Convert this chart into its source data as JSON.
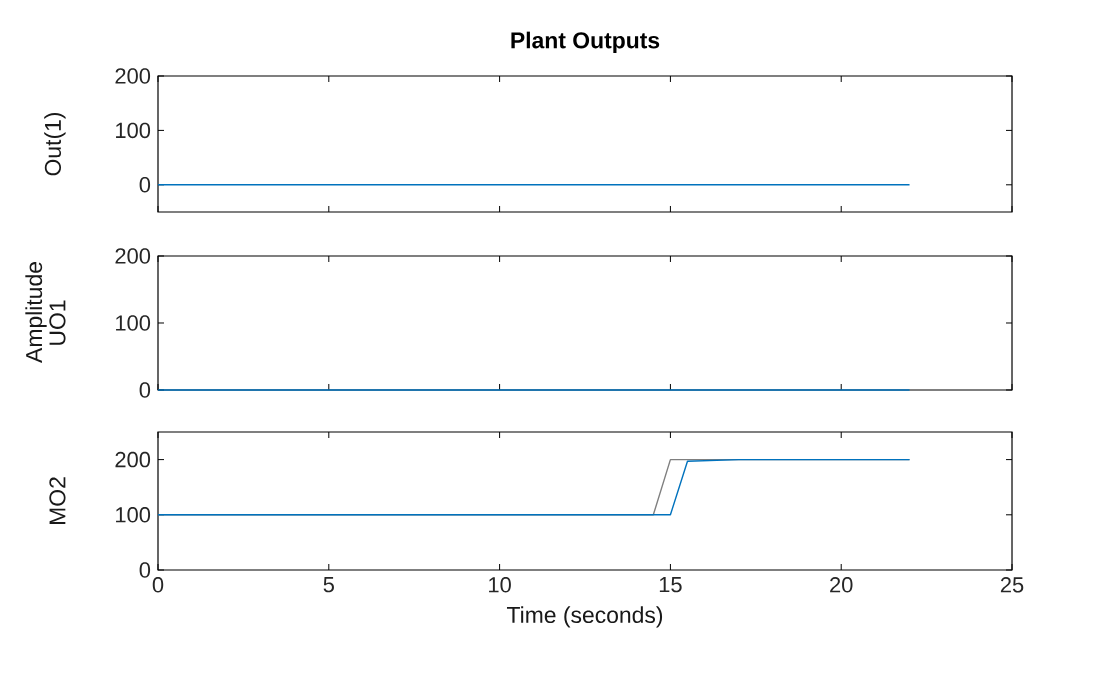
{
  "chart_data": [
    {
      "type": "line",
      "title": "Plant Outputs",
      "ylabel": "Out(1)",
      "xlim": [
        0,
        25
      ],
      "ylim": [
        -50,
        200
      ],
      "xticks": [
        0,
        5,
        10,
        15,
        20,
        25
      ],
      "yticks": [
        0,
        100,
        200
      ],
      "tick_labels": "y",
      "series": [
        {
          "color": "#0072bd",
          "x": [
            0,
            22
          ],
          "values": [
            0,
            0
          ]
        }
      ]
    },
    {
      "type": "line",
      "ylabel": "UO1",
      "annotations": [
        "Amplitude"
      ],
      "xlim": [
        0,
        25
      ],
      "ylim": [
        0,
        200
      ],
      "xticks": [
        0,
        5,
        10,
        15,
        20,
        25
      ],
      "yticks": [
        0,
        100,
        200
      ],
      "tick_labels": "y",
      "series": [
        {
          "color": "#0072bd",
          "x": [
            0,
            22
          ],
          "values": [
            0,
            0
          ]
        }
      ]
    },
    {
      "type": "line",
      "xlabel": "Time (seconds)",
      "ylabel": "MO2",
      "xlim": [
        0,
        25
      ],
      "ylim": [
        0,
        250
      ],
      "xticks": [
        0,
        5,
        10,
        15,
        20,
        25
      ],
      "yticks": [
        0,
        100,
        200
      ],
      "series": [
        {
          "color": "#7f7f7f",
          "x": [
            0,
            14.5,
            15,
            22
          ],
          "values": [
            100,
            100,
            200,
            200
          ]
        },
        {
          "color": "#0072bd",
          "x": [
            0,
            15,
            15.5,
            17,
            22
          ],
          "values": [
            100,
            100,
            197,
            200,
            200
          ]
        }
      ]
    }
  ]
}
